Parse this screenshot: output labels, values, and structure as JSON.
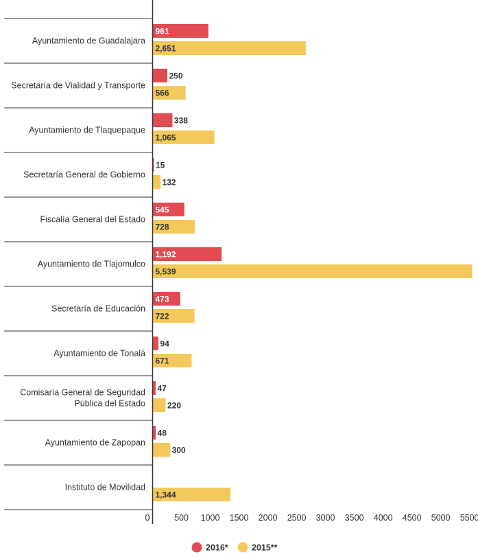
{
  "chart_data": {
    "type": "bar",
    "orientation": "horizontal",
    "categories": [
      [
        "Ayuntamiento de Guadalajara"
      ],
      [
        "Secretaría de Vialidad y Transporte"
      ],
      [
        "Ayuntamiento de Tlaquepaque"
      ],
      [
        "Secretaría General de Gobierno"
      ],
      [
        "Fiscalía General del Estado"
      ],
      [
        "Ayuntamiento de Tlajomulco"
      ],
      [
        "Secretaría de Educación"
      ],
      [
        "Ayuntamiento de Tonalá"
      ],
      [
        "Comisaría General de Seguridad",
        "Pública del Estado"
      ],
      [
        "Ayuntamiento de Zapopan"
      ],
      [
        "Instituto de Movilidad"
      ]
    ],
    "series": [
      {
        "name": "2016*",
        "color": "#e04c52",
        "values": [
          961,
          250,
          338,
          15,
          545,
          1192,
          473,
          94,
          47,
          48,
          null
        ],
        "labels": [
          "961",
          "250",
          "338",
          "15",
          "545",
          "1,192",
          "473",
          "94",
          "47",
          "48",
          null
        ]
      },
      {
        "name": "2015**",
        "color": "#f2c95a",
        "values": [
          2651,
          566,
          1065,
          132,
          728,
          5539,
          722,
          671,
          220,
          300,
          1344
        ],
        "labels": [
          "2,651",
          "566",
          "1,065",
          "132",
          "728",
          "5,539",
          "722",
          "671",
          "220",
          "300",
          "1,344"
        ]
      }
    ],
    "x_ticks": [
      0,
      500,
      1000,
      1500,
      2000,
      2500,
      3000,
      3500,
      4000,
      4500,
      5000,
      5500
    ],
    "xlim": [
      0,
      5539
    ],
    "grid": false,
    "legend_position": "bottom-center"
  }
}
